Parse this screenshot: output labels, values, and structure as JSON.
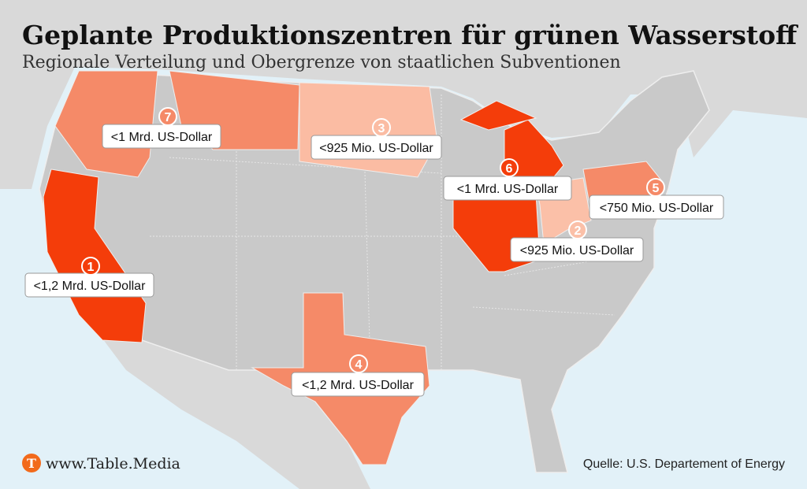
{
  "header": {
    "title": "Geplante Produktionszentren für grünen Wasserstoff",
    "subtitle": "Regionale Verteilung und Obergrenze von staatlichen Subventionen"
  },
  "hubs": [
    {
      "number": 1,
      "label": "<1,2 Mrd. US-Dollar",
      "color": "#f43d0a"
    },
    {
      "number": 2,
      "label": "<925 Mio. US-Dollar",
      "color": "#fbc0a8"
    },
    {
      "number": 3,
      "label": "<925 Mio. US-Dollar",
      "color": "#fbbca3"
    },
    {
      "number": 4,
      "label": "<1,2 Mrd. US-Dollar",
      "color": "#f58a68"
    },
    {
      "number": 5,
      "label": "<750 Mio. US-Dollar",
      "color": "#f58a68"
    },
    {
      "number": 6,
      "label": "<1 Mrd. US-Dollar",
      "color": "#f43d0a"
    },
    {
      "number": 7,
      "label": "<1 Mrd. US-Dollar",
      "color": "#f58a68"
    }
  ],
  "footer": {
    "logo": "T",
    "website": "www.Table.Media",
    "source": "Quelle: U.S. Departement of Energy"
  }
}
